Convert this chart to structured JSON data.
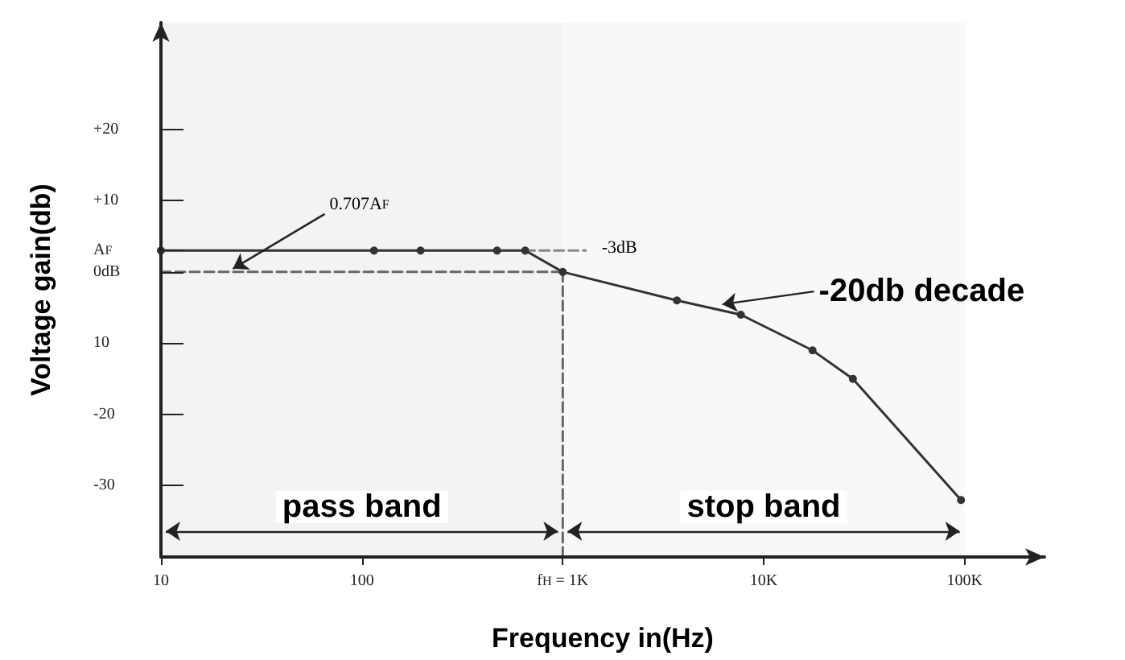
{
  "chart_data": {
    "type": "line",
    "xlabel": "Frequency in(Hz)",
    "ylabel": "Voltage gain(db)",
    "log": "x",
    "xlim": [
      10,
      250000
    ],
    "xticks": [
      10,
      100,
      {
        "value": 1000,
        "label": "f$_{H}$ = 1K"
      },
      {
        "value": 10000,
        "label": "10K"
      },
      {
        "value": 100000,
        "label": "100K"
      }
    ],
    "ylim": [
      -40,
      35
    ],
    "yticks": [
      {
        "value": 20,
        "label": "+20"
      },
      {
        "value": 10,
        "label": "+10"
      },
      {
        "value": 3,
        "label": "A$_{F}$"
      },
      {
        "value": 0,
        "label": "0dB"
      },
      {
        "value": -10,
        "label": "10"
      },
      -20,
      -30
    ],
    "series": [
      {
        "color": "#333333",
        "marker": "circle",
        "line_style": "solid",
        "x": [
          10,
          115,
          196,
          471,
          650,
          1000,
          3700,
          7700,
          17500,
          27800,
          96000
        ],
        "values": [
          3,
          3,
          3,
          3,
          3,
          0,
          -4,
          -6,
          -11,
          -15,
          -32
        ]
      },
      {
        "color": "#666666",
        "marker": "none",
        "line_style": "dashed",
        "x": [
          10,
          1000
        ],
        "values": [
          0,
          0
        ]
      },
      {
        "color": "#666666",
        "marker": "none",
        "line_style": "dashed",
        "x": [
          1000,
          1000
        ],
        "values": [
          0,
          -40
        ]
      },
      {
        "color": "#888888",
        "marker": "none",
        "line_style": "dashed",
        "x": [
          650,
          1300
        ],
        "values": [
          3,
          3
        ]
      }
    ],
    "annotations": [
      {
        "text": "0.707A$_{F}$",
        "x": 22,
        "y": 0
      },
      {
        "text": "-3dB",
        "x": 1300,
        "y": 2
      },
      {
        "text": "-20db decade",
        "x": 6000,
        "y": -5
      }
    ],
    "bands": [
      {
        "axis": "x",
        "from": 10,
        "to": 1000,
        "label": "pass band",
        "color": "#f3f3f3"
      },
      {
        "axis": "x",
        "from": 1000,
        "to": 100000,
        "label": "stop band",
        "color": "#f8f8f8"
      }
    ],
    "grid": false
  }
}
